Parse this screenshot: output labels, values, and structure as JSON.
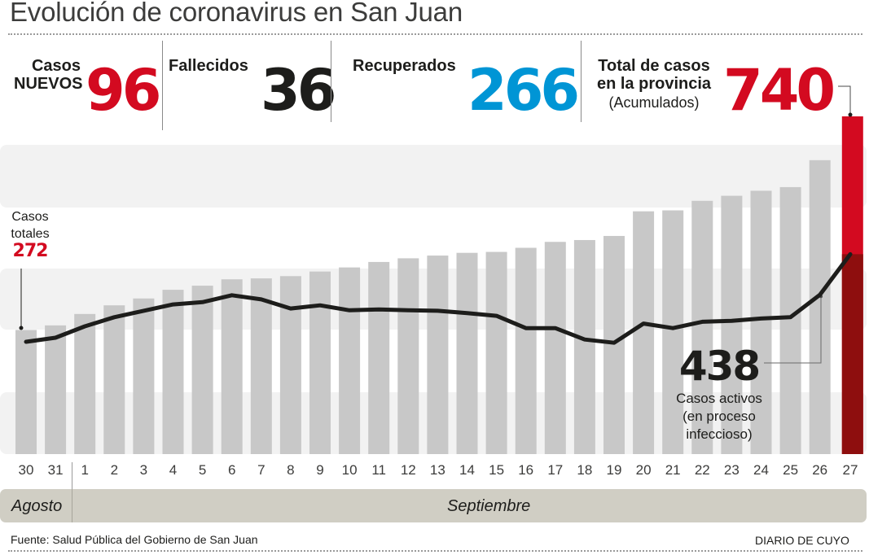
{
  "title": "Evolución de coronavirus en San Juan",
  "stats": {
    "new_cases": {
      "label_line1": "Casos",
      "label_line2": "NUEVOS",
      "value": "96",
      "color": "#d30a20"
    },
    "deaths": {
      "label": "Fallecidos",
      "value": "36",
      "color": "#1d1d1b"
    },
    "recovered": {
      "label": "Recuperados",
      "value": "266",
      "color": "#0095d5"
    },
    "total": {
      "label_line1": "Total de casos",
      "label_line2": "en la provincia",
      "sub": "(Acumulados)",
      "value": "740",
      "color": "#d30a20"
    }
  },
  "annotations": {
    "start": {
      "line1": "Casos",
      "line2": "totales",
      "value": "272"
    },
    "active": {
      "value": "438",
      "line1": "Casos activos",
      "line2": "(en proceso",
      "line3": "infeccioso)"
    }
  },
  "months": {
    "august": "Agosto",
    "september": "Septiembre"
  },
  "source": "Fuente: Salud Pública del Gobierno de San Juan",
  "brand": "DIARIO DE CUYO",
  "colors": {
    "bar": "#c8c8c8",
    "band": "#f2f2f2",
    "highlight": "#d30a20",
    "highlight_dark": "#8e0e0e",
    "line": "#1d1d1b"
  },
  "chart_data": {
    "type": "bar",
    "title": "Evolución de coronavirus en San Juan",
    "xlabel": "",
    "ylabel": "",
    "categories": [
      "30",
      "31",
      "1",
      "2",
      "3",
      "4",
      "5",
      "6",
      "7",
      "8",
      "9",
      "10",
      "11",
      "12",
      "13",
      "14",
      "15",
      "16",
      "17",
      "18",
      "19",
      "20",
      "21",
      "22",
      "23",
      "24",
      "25",
      "26",
      "27"
    ],
    "series": [
      {
        "name": "Casos totales (acumulados)",
        "type": "bar",
        "values": [
          272,
          282,
          307,
          326,
          341,
          360,
          369,
          383,
          385,
          390,
          400,
          409,
          421,
          429,
          435,
          441,
          443,
          452,
          465,
          469,
          478,
          532,
          534,
          555,
          566,
          577,
          585,
          644,
          740
        ]
      },
      {
        "name": "Casos activos",
        "type": "line",
        "values": [
          246,
          255,
          280,
          300,
          314,
          328,
          333,
          348,
          339,
          319,
          326,
          315,
          317,
          315,
          314,
          309,
          303,
          276,
          276,
          251,
          244,
          286,
          276,
          290,
          292,
          297,
          300,
          349,
          438
        ]
      }
    ],
    "ylim": [
      0,
      740
    ],
    "grid": false,
    "highlight": {
      "category": "27",
      "total": 740,
      "active": 438
    },
    "month_groups": [
      {
        "label": "Agosto",
        "categories": [
          "30",
          "31"
        ]
      },
      {
        "label": "Septiembre",
        "categories": [
          "1",
          "27"
        ]
      }
    ]
  }
}
